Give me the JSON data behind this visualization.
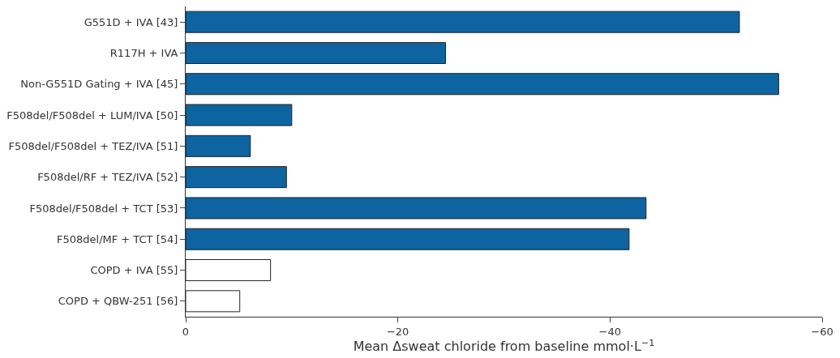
{
  "chart_data": {
    "type": "bar",
    "orientation": "horizontal",
    "xlabel": "Mean Δsweat chloride from baseline mmol·L$^{−1}$",
    "categories": [
      "G551D + IVA [43]",
      "R117H + IVA",
      "Non-G551D Gating + IVA [45]",
      "F508del/F508del + LUM/IVA [50]",
      "F508del/F508del + TEZ/IVA [51]",
      "F508del/RF + TEZ/IVA [52]",
      "F508del/F508del + TCT [53]",
      "F508del/MF + TCT [54]",
      "COPD + IVA [55]",
      "COPD + QBW-251 [56]"
    ],
    "values": [
      -52.2,
      -24.5,
      -55.9,
      -10.0,
      -6.1,
      -9.5,
      -43.4,
      -41.8,
      -8.0,
      -5.1
    ],
    "colors": [
      "#0d64a0",
      "#0d64a0",
      "#0d64a0",
      "#0d64a0",
      "#0d64a0",
      "#0d64a0",
      "#0d64a0",
      "#0d64a0",
      "#ffffff",
      "#ffffff"
    ],
    "xlim": [
      0,
      -60
    ],
    "xticks": [
      {
        "value": 0,
        "label": "0"
      },
      {
        "value": -20,
        "label": "−20"
      },
      {
        "value": -40,
        "label": "−40"
      },
      {
        "value": -60,
        "label": "−60"
      }
    ]
  }
}
